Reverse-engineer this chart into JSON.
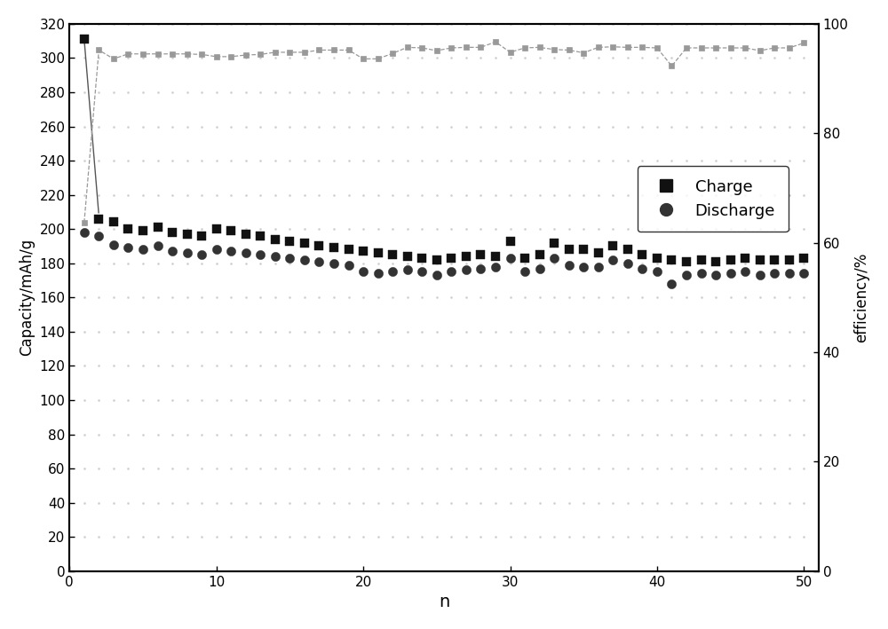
{
  "charge_x": [
    1,
    2,
    3,
    4,
    5,
    6,
    7,
    8,
    9,
    10,
    11,
    12,
    13,
    14,
    15,
    16,
    17,
    18,
    19,
    20,
    21,
    22,
    23,
    24,
    25,
    26,
    27,
    28,
    29,
    30,
    31,
    32,
    33,
    34,
    35,
    36,
    37,
    38,
    39,
    40,
    41,
    42,
    43,
    44,
    45,
    46,
    47,
    48,
    49,
    50
  ],
  "charge_y": [
    311,
    206,
    204,
    200,
    199,
    201,
    198,
    197,
    196,
    200,
    199,
    197,
    196,
    194,
    193,
    192,
    190,
    189,
    188,
    187,
    186,
    185,
    184,
    183,
    182,
    183,
    184,
    185,
    184,
    193,
    183,
    185,
    192,
    188,
    188,
    186,
    190,
    188,
    185,
    183,
    182,
    181,
    182,
    181,
    182,
    183,
    182,
    182,
    182,
    183
  ],
  "discharge_x": [
    1,
    2,
    3,
    4,
    5,
    6,
    7,
    8,
    9,
    10,
    11,
    12,
    13,
    14,
    15,
    16,
    17,
    18,
    19,
    20,
    21,
    22,
    23,
    24,
    25,
    26,
    27,
    28,
    29,
    30,
    31,
    32,
    33,
    34,
    35,
    36,
    37,
    38,
    39,
    40,
    41,
    42,
    43,
    44,
    45,
    46,
    47,
    48,
    49,
    50
  ],
  "discharge_y": [
    198,
    196,
    191,
    189,
    188,
    190,
    187,
    186,
    185,
    188,
    187,
    186,
    185,
    184,
    183,
    182,
    181,
    180,
    179,
    175,
    174,
    175,
    176,
    175,
    173,
    175,
    176,
    177,
    178,
    183,
    175,
    177,
    183,
    179,
    178,
    178,
    182,
    180,
    177,
    175,
    168,
    173,
    174,
    173,
    174,
    175,
    173,
    174,
    174,
    174
  ],
  "efficiency_x": [
    1,
    2,
    3,
    4,
    5,
    6,
    7,
    8,
    9,
    10,
    11,
    12,
    13,
    14,
    15,
    16,
    17,
    18,
    19,
    20,
    21,
    22,
    23,
    24,
    25,
    26,
    27,
    28,
    29,
    30,
    31,
    32,
    33,
    34,
    35,
    36,
    37,
    38,
    39,
    40,
    41,
    42,
    43,
    44,
    45,
    46,
    47,
    48,
    49,
    50
  ],
  "efficiency_y": [
    63.7,
    95.2,
    93.6,
    94.5,
    94.5,
    94.5,
    94.5,
    94.5,
    94.4,
    94.0,
    94.0,
    94.3,
    94.4,
    94.8,
    94.8,
    94.8,
    95.2,
    95.2,
    95.2,
    93.6,
    93.6,
    94.6,
    95.7,
    95.6,
    95.1,
    95.6,
    95.7,
    95.7,
    96.7,
    94.8,
    95.6,
    95.7,
    95.3,
    95.2,
    94.7,
    95.7,
    95.8,
    95.7,
    95.7,
    95.6,
    92.3,
    95.6,
    95.6,
    95.6,
    95.6,
    95.6,
    95.1,
    95.6,
    95.6,
    96.5
  ],
  "ylabel_left": "Capacity/mAh/g",
  "ylabel_right": "efficiency/%",
  "xlabel": "n",
  "ylim_left": [
    0,
    320
  ],
  "ylim_right": [
    0,
    100
  ],
  "xlim": [
    0,
    51
  ],
  "charge_color": "#111111",
  "discharge_color": "#333333",
  "efficiency_color": "#999999",
  "bg_color": "#ffffff",
  "dot_color": "#cccccc",
  "legend_charge": "Charge",
  "legend_discharge": "Discharge",
  "left_yticks": [
    0,
    20,
    40,
    60,
    80,
    100,
    120,
    140,
    160,
    180,
    200,
    220,
    240,
    260,
    280,
    300,
    320
  ],
  "right_yticks": [
    0,
    20,
    40,
    60,
    80,
    100
  ],
  "xticks": [
    0,
    10,
    20,
    30,
    40,
    50
  ]
}
